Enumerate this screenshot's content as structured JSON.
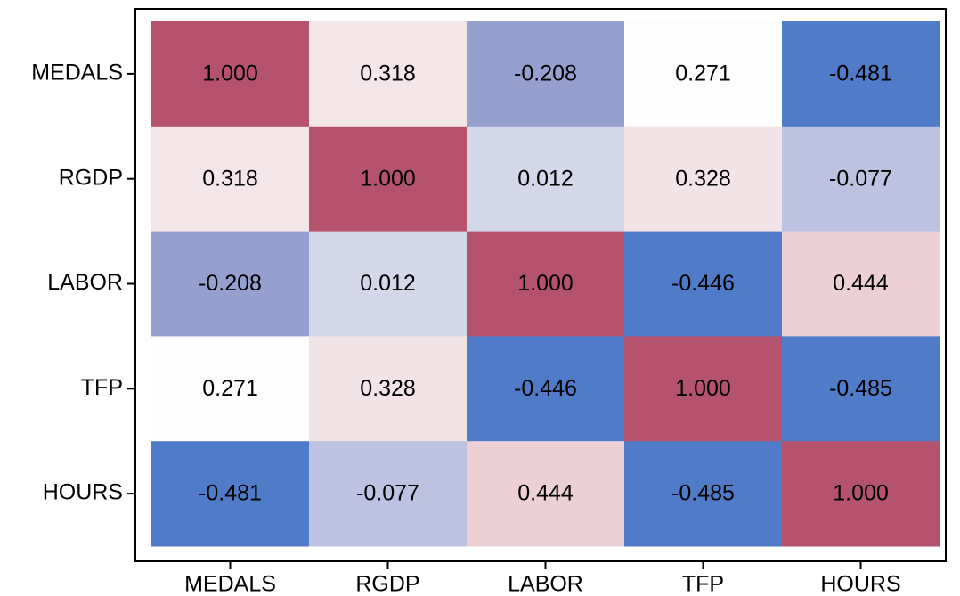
{
  "chart_data": {
    "type": "heatmap",
    "x": [
      "MEDALS",
      "RGDP",
      "LABOR",
      "TFP",
      "HOURS"
    ],
    "y": [
      "MEDALS",
      "RGDP",
      "LABOR",
      "TFP",
      "HOURS"
    ],
    "values": [
      [
        1,
        0.318,
        -0.208,
        0.271,
        -0.481
      ],
      [
        0.318,
        1,
        0.012,
        0.328,
        -0.077
      ],
      [
        -0.208,
        0.012,
        1,
        -0.446,
        0.444
      ],
      [
        0.271,
        0.328,
        -0.446,
        1,
        -0.485
      ],
      [
        -0.481,
        -0.077,
        0.444,
        -0.485,
        1
      ]
    ],
    "value_labels": [
      [
        "1.000",
        "0.318",
        "-0.208",
        "0.271",
        "-0.481"
      ],
      [
        "0.318",
        "1.000",
        "0.012",
        "0.328",
        "-0.077"
      ],
      [
        "-0.208",
        "0.012",
        "1.000",
        "-0.446",
        "0.444"
      ],
      [
        "0.271",
        "0.328",
        "-0.446",
        "1.000",
        "-0.485"
      ],
      [
        "-0.481",
        "-0.077",
        "0.444",
        "-0.485",
        "1.000"
      ]
    ],
    "colors": [
      [
        "#b5536f",
        "#f3e5e8",
        "#96a0cf",
        "#fdfdfd",
        "#4f7bc8"
      ],
      [
        "#f3e5e8",
        "#b5536f",
        "#d4d6ea",
        "#f2e3e6",
        "#bcc2e0"
      ],
      [
        "#96a0cf",
        "#d4d6ea",
        "#b5536f",
        "#4f7bc8",
        "#edd0d6"
      ],
      [
        "#fdfdfd",
        "#f2e3e6",
        "#4f7bc8",
        "#b5536f",
        "#4f7bc8"
      ],
      [
        "#4f7bc8",
        "#bcc2e0",
        "#edd0d6",
        "#4f7bc8",
        "#b5536f"
      ]
    ]
  }
}
